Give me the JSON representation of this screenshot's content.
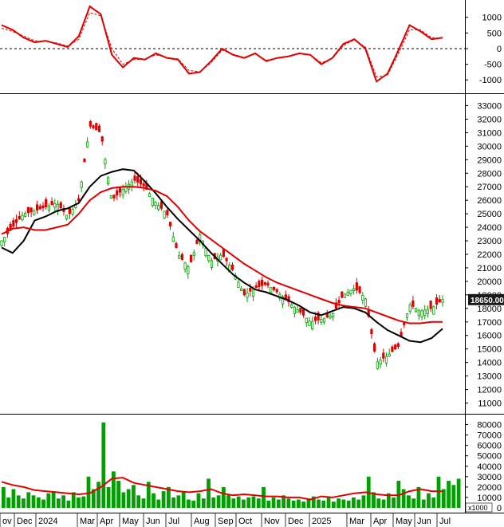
{
  "chart_data": [
    {
      "type": "line",
      "panel": "oscillator",
      "y_ticks": [
        "1000",
        "500",
        "0",
        "-500",
        "-1000"
      ],
      "ylim": [
        -1300,
        1400
      ],
      "x": [
        0,
        5,
        10,
        15,
        20,
        25,
        30,
        35,
        40,
        45,
        50,
        55,
        60,
        65,
        70,
        75,
        80,
        85,
        90,
        95,
        100,
        105,
        110,
        115,
        120,
        125,
        130,
        135,
        140,
        145,
        150,
        155,
        160,
        165,
        170,
        175,
        180,
        185,
        190,
        195,
        200
      ],
      "series": [
        {
          "values": [
            750,
            600,
            350,
            200,
            250,
            150,
            50,
            400,
            1350,
            1100,
            -200,
            -600,
            -300,
            -350,
            -150,
            -300,
            -350,
            -800,
            -750,
            -400,
            0,
            -200,
            -300,
            -150,
            -400,
            -300,
            -250,
            -150,
            -200,
            -500,
            -300,
            150,
            300,
            0,
            -1050,
            -800,
            -50,
            750,
            550,
            300,
            350
          ],
          "color": "#e00000"
        },
        {
          "values": [
            650,
            550,
            400,
            250,
            230,
            180,
            80,
            300,
            1150,
            1050,
            0,
            -500,
            -350,
            -330,
            -200,
            -280,
            -330,
            -700,
            -740,
            -450,
            -50,
            -180,
            -280,
            -170,
            -370,
            -310,
            -260,
            -170,
            -200,
            -450,
            -320,
            100,
            280,
            50,
            -900,
            -850,
            -150,
            600,
            600,
            350,
            330
          ],
          "color": "#e00000",
          "dashed": true
        }
      ]
    },
    {
      "type": "line",
      "panel": "price",
      "y_ticks": [
        "33000",
        "32000",
        "31000",
        "30000",
        "29000",
        "28000",
        "27000",
        "26000",
        "25000",
        "24000",
        "23000",
        "22000",
        "21000",
        "20000",
        "19000",
        "18000",
        "17000",
        "16000",
        "15000",
        "14000",
        "13000",
        "12000",
        "11000"
      ],
      "ylim": [
        10500,
        33500
      ],
      "last_price": "18650.00",
      "price_x": [
        0,
        5,
        10,
        15,
        20,
        25,
        30,
        35,
        40,
        45,
        50,
        55,
        60,
        65,
        70,
        75,
        80,
        85,
        90,
        95,
        100,
        105,
        110,
        115,
        120,
        125,
        130,
        135,
        140,
        145,
        150,
        155,
        160,
        165,
        170,
        175,
        180,
        185,
        190,
        195,
        200
      ],
      "price_close": [
        23000,
        24000,
        25000,
        25200,
        25500,
        25800,
        24800,
        26000,
        31500,
        31000,
        26000,
        26800,
        27500,
        27000,
        25800,
        25000,
        22000,
        21000,
        23500,
        21500,
        22000,
        20800,
        19000,
        19500,
        19800,
        19200,
        18500,
        17800,
        17000,
        17200,
        17500,
        19000,
        19500,
        18800,
        14000,
        14500,
        15200,
        18300,
        17800,
        18000,
        18650
      ],
      "series": [
        {
          "name": "MA black",
          "color": "#000000",
          "x": [
            0,
            5,
            10,
            15,
            20,
            25,
            30,
            35,
            40,
            45,
            50,
            55,
            60,
            65,
            70,
            75,
            80,
            85,
            90,
            95,
            100,
            105,
            110,
            115,
            120,
            125,
            130,
            135,
            140,
            145,
            150,
            155,
            160,
            165,
            170,
            175,
            180,
            185,
            190,
            195,
            200
          ],
          "values": [
            22500,
            22100,
            23000,
            24500,
            24800,
            25200,
            25400,
            25800,
            27000,
            27800,
            28100,
            28300,
            28200,
            27400,
            26500,
            25500,
            24600,
            23800,
            23000,
            22100,
            21300,
            20500,
            19900,
            19400,
            19200,
            18900,
            18600,
            18200,
            17700,
            17500,
            17800,
            18100,
            18000,
            17700,
            17000,
            16400,
            16000,
            15600,
            15500,
            15800,
            16500
          ]
        },
        {
          "name": "MA red",
          "color": "#e00000",
          "x": [
            0,
            5,
            10,
            15,
            20,
            25,
            30,
            35,
            40,
            45,
            50,
            55,
            60,
            65,
            70,
            75,
            80,
            85,
            90,
            95,
            100,
            105,
            110,
            115,
            120,
            125,
            130,
            135,
            140,
            145,
            150,
            155,
            160,
            165,
            170,
            175,
            180,
            185,
            190,
            195,
            200
          ],
          "values": [
            23500,
            23900,
            24000,
            23800,
            23800,
            24000,
            24200,
            25000,
            26000,
            26600,
            26900,
            27000,
            27000,
            26900,
            26700,
            26300,
            25500,
            24500,
            23700,
            23100,
            22500,
            21900,
            21300,
            20800,
            20300,
            19900,
            19600,
            19300,
            19000,
            18700,
            18400,
            18200,
            18100,
            18000,
            17700,
            17400,
            17100,
            16900,
            16900,
            17000,
            17000
          ]
        }
      ]
    },
    {
      "type": "bar",
      "panel": "volume",
      "y_ticks": [
        "80000",
        "70000",
        "60000",
        "50000",
        "40000",
        "30000",
        "20000",
        "10000",
        "0"
      ],
      "ylim": [
        0,
        85000
      ],
      "unit_label": "x1000",
      "x_tick_labels": [
        "ov",
        "Dec",
        "2024",
        "Mar",
        "Apr",
        "May",
        "Jun",
        "Jul",
        "Aug",
        "Sep",
        "Oct",
        "Nov",
        "Dec",
        "2025",
        "Mar",
        "Apr",
        "May",
        "Jun",
        "Jul"
      ],
      "values": [
        20000,
        10000,
        18000,
        12000,
        9000,
        15000,
        12000,
        10000,
        8000,
        14000,
        16000,
        9000,
        12000,
        7000,
        15000,
        10000,
        11000,
        30000,
        18000,
        25000,
        82000,
        20000,
        35000,
        26000,
        15000,
        18000,
        22000,
        12000,
        9000,
        25000,
        14000,
        8000,
        16000,
        20000,
        10000,
        12000,
        15000,
        8000,
        7000,
        14000,
        9000,
        28000,
        10000,
        12000,
        20000,
        13000,
        9000,
        11000,
        8000,
        10000,
        11000,
        9000,
        20000,
        7000,
        10000,
        8000,
        12000,
        9000,
        7000,
        8000,
        6000,
        9000,
        11000,
        8000,
        7000,
        10000,
        6000,
        9000,
        8000,
        7000,
        10000,
        8000,
        12000,
        30000,
        15000,
        9000,
        8000,
        14000,
        10000,
        26000,
        18000,
        12000,
        9000,
        20000,
        8000,
        14000,
        10000,
        30000,
        18000,
        26000,
        22000,
        28000
      ],
      "ma_values": [
        25000,
        22000,
        20000,
        17000,
        16000,
        15000,
        14000,
        13000,
        14000,
        20000,
        28000,
        29000,
        24000,
        22000,
        20000,
        18000,
        16000,
        15000,
        16000,
        18000,
        14000,
        12000,
        13000,
        12000,
        11000,
        11000,
        10000,
        10000,
        8000,
        11000,
        10000,
        12000,
        14000,
        15000,
        13000,
        12000,
        12000,
        16000,
        18000,
        16000,
        16000
      ]
    }
  ]
}
